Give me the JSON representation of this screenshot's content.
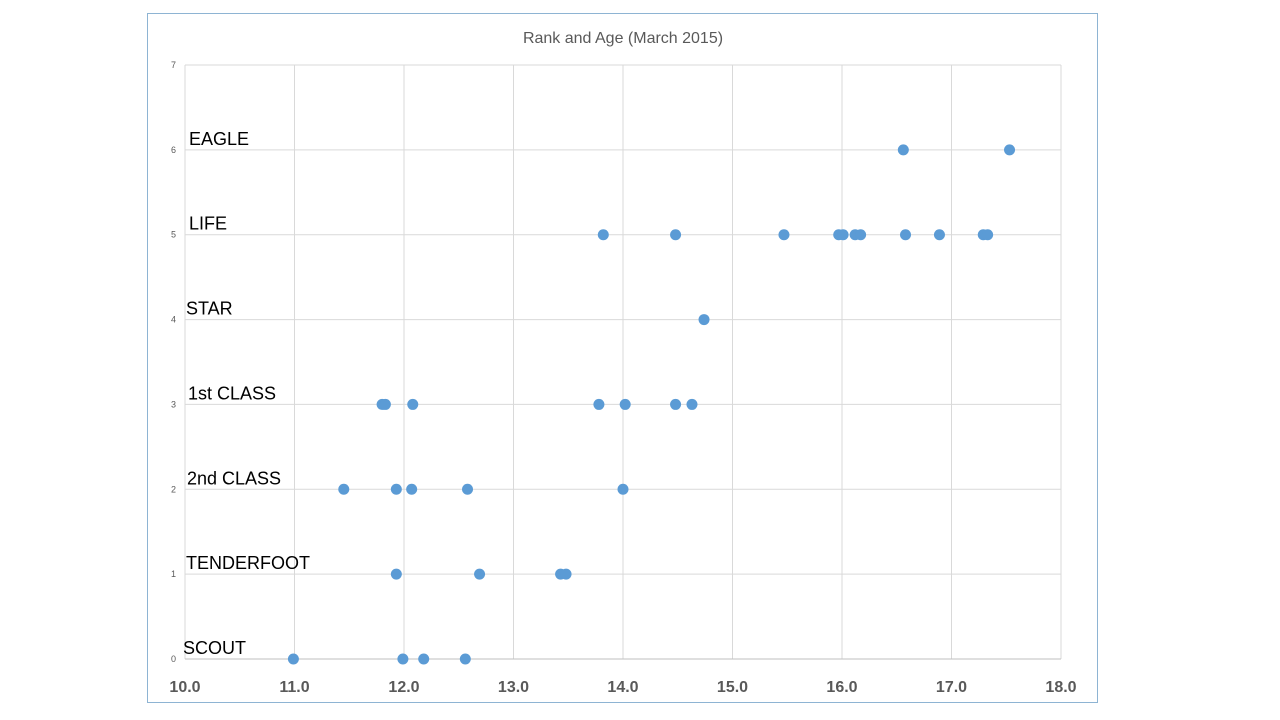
{
  "chart_data": {
    "type": "scatter",
    "title": "Rank and Age (March 2015)",
    "xlabel": "",
    "ylabel": "",
    "xlim": [
      10.0,
      18.0
    ],
    "ylim": [
      0,
      7
    ],
    "x_ticks": [
      "10.0",
      "11.0",
      "12.0",
      "13.0",
      "14.0",
      "15.0",
      "16.0",
      "17.0",
      "18.0"
    ],
    "y_ticks": [
      "0",
      "1",
      "2",
      "3",
      "4",
      "5",
      "6",
      "7"
    ],
    "grid": true,
    "marker_color": "#5b9bd5",
    "rank_labels": [
      {
        "y": 6,
        "text": "EAGLE"
      },
      {
        "y": 5,
        "text": "LIFE"
      },
      {
        "y": 4,
        "text": "STAR"
      },
      {
        "y": 3,
        "text": "1st CLASS"
      },
      {
        "y": 2,
        "text": "2nd CLASS"
      },
      {
        "y": 1,
        "text": "TENDERFOOT"
      },
      {
        "y": 0,
        "text": "SCOUT"
      }
    ],
    "points": [
      {
        "x": 16.56,
        "y": 6
      },
      {
        "x": 17.53,
        "y": 6
      },
      {
        "x": 13.82,
        "y": 5
      },
      {
        "x": 14.48,
        "y": 5
      },
      {
        "x": 15.47,
        "y": 5
      },
      {
        "x": 15.97,
        "y": 5
      },
      {
        "x": 16.01,
        "y": 5
      },
      {
        "x": 16.12,
        "y": 5
      },
      {
        "x": 16.17,
        "y": 5
      },
      {
        "x": 16.58,
        "y": 5
      },
      {
        "x": 16.89,
        "y": 5
      },
      {
        "x": 17.29,
        "y": 5
      },
      {
        "x": 17.33,
        "y": 5
      },
      {
        "x": 14.74,
        "y": 4
      },
      {
        "x": 11.8,
        "y": 3
      },
      {
        "x": 11.83,
        "y": 3
      },
      {
        "x": 12.08,
        "y": 3
      },
      {
        "x": 13.78,
        "y": 3
      },
      {
        "x": 14.02,
        "y": 3
      },
      {
        "x": 14.48,
        "y": 3
      },
      {
        "x": 14.63,
        "y": 3
      },
      {
        "x": 11.45,
        "y": 2
      },
      {
        "x": 11.93,
        "y": 2
      },
      {
        "x": 12.07,
        "y": 2
      },
      {
        "x": 12.58,
        "y": 2
      },
      {
        "x": 14.0,
        "y": 2
      },
      {
        "x": 11.93,
        "y": 1
      },
      {
        "x": 12.69,
        "y": 1
      },
      {
        "x": 13.43,
        "y": 1
      },
      {
        "x": 13.48,
        "y": 1
      },
      {
        "x": 10.99,
        "y": 0
      },
      {
        "x": 11.99,
        "y": 0
      },
      {
        "x": 12.18,
        "y": 0
      },
      {
        "x": 12.56,
        "y": 0
      }
    ]
  }
}
